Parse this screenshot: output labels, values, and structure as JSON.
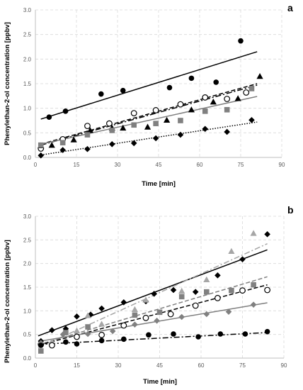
{
  "chart_data": [
    {
      "panel_label": "a",
      "type": "scatter",
      "xlabel": "Time [min]",
      "ylabel": "Phenylethan-2-ol concentration [ppbv]",
      "xlim": [
        0,
        90
      ],
      "ylim": [
        0,
        3.0
      ],
      "xticks": [
        "0",
        "15",
        "30",
        "45",
        "60",
        "75",
        "90"
      ],
      "yticks": [
        "0.0",
        "0.5",
        "1.0",
        "1.5",
        "2.0",
        "2.5",
        "3.0"
      ],
      "grid": "dashed",
      "legend": "none",
      "series": [
        {
          "marker": "filled-circle",
          "color": "#000000",
          "points": [
            [
              5,
              0.82
            ],
            [
              11,
              0.94
            ],
            [
              24,
              1.29
            ],
            [
              32,
              1.36
            ],
            [
              49,
              1.42
            ],
            [
              57,
              1.61
            ],
            [
              66,
              1.53
            ],
            [
              75,
              2.37
            ]
          ],
          "trendline": {
            "style": "solid",
            "color": "#000000",
            "x": [
              2,
              81
            ],
            "y": [
              0.78,
              2.15
            ]
          }
        },
        {
          "marker": "open-circle",
          "color": "#000000",
          "points": [
            [
              2,
              0.18
            ],
            [
              10,
              0.37
            ],
            [
              19,
              0.64
            ],
            [
              27,
              0.69
            ],
            [
              36,
              0.9
            ],
            [
              44,
              0.96
            ],
            [
              53,
              1.08
            ],
            [
              62,
              1.22
            ],
            [
              70,
              1.19
            ],
            [
              77,
              1.32
            ]
          ],
          "trendline": {
            "style": "dashed",
            "color": "#000000",
            "x": [
              2,
              81
            ],
            "y": [
              0.27,
              1.5
            ]
          }
        },
        {
          "marker": "filled-triangle",
          "color": "#000000",
          "points": [
            [
              2,
              0.24
            ],
            [
              6,
              0.25
            ],
            [
              14,
              0.36
            ],
            [
              20,
              0.55
            ],
            [
              28,
              0.6
            ],
            [
              32,
              0.6
            ],
            [
              41,
              0.62
            ],
            [
              48,
              0.76
            ],
            [
              57,
              0.97
            ],
            [
              65,
              1.13
            ],
            [
              74,
              1.2
            ],
            [
              82,
              1.65
            ]
          ],
          "trendline": {
            "style": "dash-dot",
            "color": "#000000",
            "x": [
              2,
              81
            ],
            "y": [
              0.25,
              1.47
            ]
          }
        },
        {
          "marker": "filled-square",
          "color": "#808080",
          "points": [
            [
              2,
              0.25
            ],
            [
              10,
              0.3
            ],
            [
              19,
              0.46
            ],
            [
              28,
              0.55
            ],
            [
              36,
              0.66
            ],
            [
              44,
              0.69
            ],
            [
              53,
              0.75
            ],
            [
              62,
              0.94
            ],
            [
              70,
              0.97
            ],
            [
              79,
              1.4
            ]
          ],
          "trendline": {
            "style": "solid",
            "color": "#808080",
            "x": [
              2,
              81
            ],
            "y": [
              0.27,
              1.24
            ]
          }
        },
        {
          "marker": "filled-diamond",
          "color": "#000000",
          "points": [
            [
              2,
              0.04
            ],
            [
              10,
              0.15
            ],
            [
              19,
              0.17
            ],
            [
              28,
              0.27
            ],
            [
              36,
              0.29
            ],
            [
              44,
              0.39
            ],
            [
              53,
              0.46
            ],
            [
              62,
              0.58
            ],
            [
              70,
              0.52
            ],
            [
              79,
              0.76
            ]
          ],
          "trendline": {
            "style": "dotted",
            "color": "#000000",
            "x": [
              2,
              81
            ],
            "y": [
              0.05,
              0.72
            ]
          }
        }
      ]
    },
    {
      "panel_label": "b",
      "type": "scatter",
      "xlabel": "Time [min]",
      "ylabel": "Phenylethan-2-ol concentration [ppbv]",
      "xlim": [
        0,
        90
      ],
      "ylim": [
        0,
        3.0
      ],
      "xticks": [
        "0",
        "15",
        "30",
        "45",
        "60",
        "75",
        "90"
      ],
      "yticks": [
        "0.0",
        "0.5",
        "1.0",
        "1.5",
        "2.0",
        "2.5",
        "3.0"
      ],
      "grid": "dashed",
      "legend": "none",
      "series": [
        {
          "marker": "filled-diamond",
          "color": "#000000",
          "points": [
            [
              2,
              0.36
            ],
            [
              6,
              0.59
            ],
            [
              11,
              0.62
            ],
            [
              15,
              0.88
            ],
            [
              20,
              0.92
            ],
            [
              24,
              1.05
            ],
            [
              32,
              1.18
            ],
            [
              40,
              1.2
            ],
            [
              43,
              1.36
            ],
            [
              50,
              1.44
            ],
            [
              58,
              1.4
            ],
            [
              66,
              1.75
            ],
            [
              75,
              2.09
            ],
            [
              84,
              2.62
            ]
          ],
          "trendline": {
            "style": "solid",
            "color": "#000000",
            "x": [
              1,
              84
            ],
            "y": [
              0.47,
              2.29
            ]
          }
        },
        {
          "marker": "filled-triangle",
          "color": "#a6a6a6",
          "points": [
            [
              6,
              0.35
            ],
            [
              15,
              0.58
            ],
            [
              19,
              0.9
            ],
            [
              24,
              0.72
            ],
            [
              36,
              1.03
            ],
            [
              40,
              1.23
            ],
            [
              53,
              1.42
            ],
            [
              62,
              1.66
            ],
            [
              71,
              2.26
            ],
            [
              79,
              2.64
            ]
          ],
          "trendline": {
            "style": "dash-dot",
            "color": "#a6a6a6",
            "x": [
              1,
              84
            ],
            "y": [
              0.22,
              2.42
            ]
          }
        },
        {
          "marker": "filled-square",
          "color": "#808080",
          "points": [
            [
              2,
              0.15
            ],
            [
              11,
              0.54
            ],
            [
              19,
              0.66
            ],
            [
              36,
              0.91
            ],
            [
              45,
              0.97
            ],
            [
              53,
              1.3
            ],
            [
              62,
              1.4
            ],
            [
              71,
              1.43
            ],
            [
              79,
              1.55
            ]
          ],
          "trendline": {
            "style": "dashed",
            "color": "#808080",
            "x": [
              1,
              84
            ],
            "y": [
              0.28,
              1.72
            ]
          }
        },
        {
          "marker": "open-circle",
          "color": "#000000",
          "points": [
            [
              2,
              0.29
            ],
            [
              6,
              0.27
            ],
            [
              15,
              0.45
            ],
            [
              24,
              0.49
            ],
            [
              32,
              0.69
            ],
            [
              40,
              0.85
            ],
            [
              49,
              0.93
            ],
            [
              58,
              1.11
            ],
            [
              66,
              1.27
            ],
            [
              75,
              1.43
            ],
            [
              84,
              1.44
            ]
          ],
          "trendline": {
            "style": "dashed",
            "color": "#000000",
            "x": [
              1,
              84
            ],
            "y": [
              0.27,
              1.55
            ]
          }
        },
        {
          "marker": "filled-diamond",
          "color": "#808080",
          "points": [
            [
              2,
              0.32
            ],
            [
              10,
              0.5
            ],
            [
              19,
              0.51
            ],
            [
              28,
              0.57
            ],
            [
              36,
              0.71
            ],
            [
              44,
              0.79
            ],
            [
              53,
              0.87
            ],
            [
              62,
              0.93
            ],
            [
              70,
              0.98
            ],
            [
              79,
              1.13
            ]
          ],
          "trendline": {
            "style": "solid",
            "color": "#808080",
            "x": [
              1,
              84
            ],
            "y": [
              0.35,
              1.17
            ]
          }
        },
        {
          "marker": "filled-circle",
          "color": "#000000",
          "points": [
            [
              2,
              0.27
            ],
            [
              11,
              0.34
            ],
            [
              15,
              0.3
            ],
            [
              24,
              0.37
            ],
            [
              32,
              0.4
            ],
            [
              41,
              0.49
            ],
            [
              50,
              0.51
            ],
            [
              59,
              0.45
            ],
            [
              67,
              0.51
            ],
            [
              76,
              0.51
            ],
            [
              84,
              0.56
            ]
          ],
          "trendline": {
            "style": "dash-dot",
            "color": "#000000",
            "x": [
              1,
              84
            ],
            "y": [
              0.29,
              0.54
            ]
          }
        }
      ]
    }
  ]
}
